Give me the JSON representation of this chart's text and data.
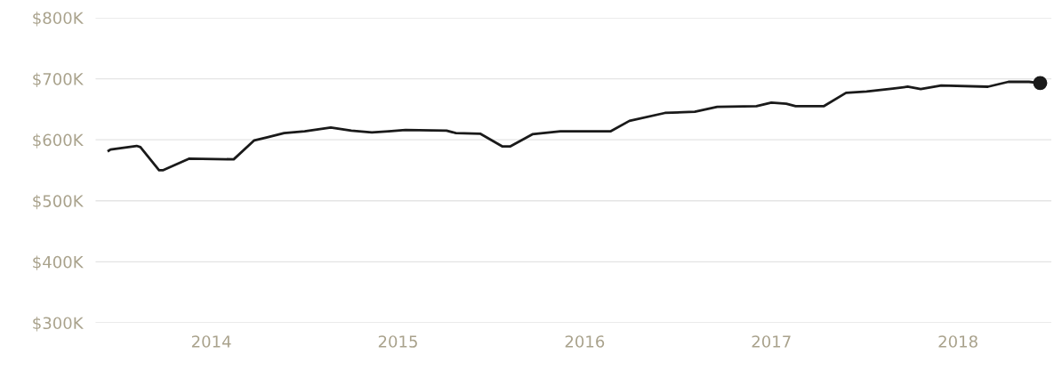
{
  "chart_data": {
    "type": "line",
    "grid": "y",
    "legend": false,
    "line_style": "solid",
    "xlim": [
      2013.38,
      2018.5
    ],
    "xticks": [
      2014,
      2015,
      2016,
      2017,
      2018
    ],
    "ylim": [
      300000,
      800000
    ],
    "yticks": [
      {
        "value": 300000,
        "label": "$300K"
      },
      {
        "value": 400000,
        "label": "$400K"
      },
      {
        "value": 500000,
        "label": "$500K"
      },
      {
        "value": 600000,
        "label": "$600K"
      },
      {
        "value": 700000,
        "label": "$700K"
      },
      {
        "value": 800000,
        "label": "$800K"
      }
    ],
    "series": [
      {
        "color": "#1a1a1a",
        "x": [
          2013.45,
          2013.46,
          2013.6,
          2013.62,
          2013.72,
          2013.74,
          2013.88,
          2014.12,
          2014.23,
          2014.3,
          2014.39,
          2014.5,
          2014.64,
          2014.75,
          2014.86,
          2014.95,
          2015.04,
          2015.26,
          2015.31,
          2015.44,
          2015.56,
          2015.6,
          2015.72,
          2015.87,
          2016.14,
          2016.24,
          2016.43,
          2016.59,
          2016.71,
          2016.92,
          2017.0,
          2017.08,
          2017.13,
          2017.28,
          2017.4,
          2017.51,
          2017.65,
          2017.73,
          2017.8,
          2017.91,
          2018.16,
          2018.27,
          2018.38,
          2018.44
        ],
        "values": [
          582000,
          584000,
          590000,
          588000,
          550000,
          550000,
          569000,
          568000,
          599000,
          604000,
          611000,
          614000,
          620000,
          615000,
          612000,
          614000,
          616000,
          615000,
          611000,
          610000,
          589000,
          589000,
          609000,
          614000,
          614000,
          631000,
          644000,
          646000,
          654000,
          655000,
          661000,
          659000,
          655000,
          655000,
          677000,
          679000,
          684000,
          687000,
          683000,
          689000,
          687000,
          695000,
          695000,
          693000
        ]
      },
      {
        "type": "scatter",
        "color": "#1a1a1a",
        "x": [
          2018.44
        ],
        "values": [
          693000
        ]
      }
    ]
  }
}
